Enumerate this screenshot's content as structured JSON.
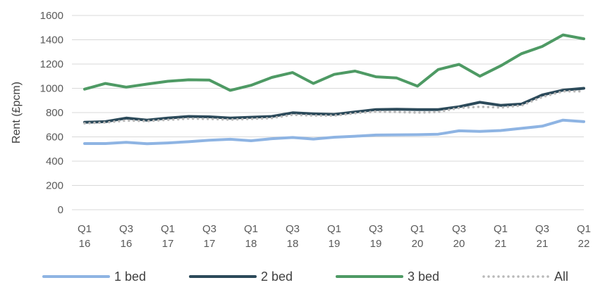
{
  "chart_data": {
    "type": "line",
    "title": "",
    "xlabel": "",
    "ylabel": "Rent (£pcm)",
    "ylim": [
      0,
      1600
    ],
    "yticks": [
      0,
      200,
      400,
      600,
      800,
      1000,
      1200,
      1400,
      1600
    ],
    "x_quarters": [
      "Q1 16",
      "Q2 16",
      "Q3 16",
      "Q4 16",
      "Q1 17",
      "Q2 17",
      "Q3 17",
      "Q4 17",
      "Q1 18",
      "Q2 18",
      "Q3 18",
      "Q4 18",
      "Q1 19",
      "Q2 19",
      "Q3 19",
      "Q4 19",
      "Q1 20",
      "Q2 20",
      "Q3 20",
      "Q4 20",
      "Q1 21",
      "Q2 21",
      "Q3 21",
      "Q4 21",
      "Q1 22"
    ],
    "x_tick_labels": [
      {
        "index": 0,
        "top": "Q1",
        "bottom": "16"
      },
      {
        "index": 2,
        "top": "Q3",
        "bottom": "16"
      },
      {
        "index": 4,
        "top": "Q1",
        "bottom": "17"
      },
      {
        "index": 6,
        "top": "Q3",
        "bottom": "17"
      },
      {
        "index": 8,
        "top": "Q1",
        "bottom": "18"
      },
      {
        "index": 10,
        "top": "Q3",
        "bottom": "18"
      },
      {
        "index": 12,
        "top": "Q1",
        "bottom": "19"
      },
      {
        "index": 14,
        "top": "Q3",
        "bottom": "19"
      },
      {
        "index": 16,
        "top": "Q1",
        "bottom": "20"
      },
      {
        "index": 18,
        "top": "Q3",
        "bottom": "20"
      },
      {
        "index": 20,
        "top": "Q1",
        "bottom": "21"
      },
      {
        "index": 22,
        "top": "Q3",
        "bottom": "21"
      },
      {
        "index": 24,
        "top": "Q1",
        "bottom": "22"
      }
    ],
    "grid": true,
    "legend_position": "bottom",
    "series": [
      {
        "name": "1 bed",
        "color": "#8eb4e3",
        "style": "solid",
        "values": [
          545,
          545,
          555,
          543,
          550,
          560,
          572,
          580,
          568,
          585,
          595,
          582,
          597,
          605,
          615,
          617,
          618,
          622,
          650,
          645,
          652,
          670,
          688,
          738,
          725
        ]
      },
      {
        "name": "2 bed",
        "color": "#2c4a5a",
        "style": "solid",
        "values": [
          720,
          725,
          755,
          738,
          755,
          768,
          765,
          755,
          762,
          768,
          798,
          790,
          785,
          805,
          825,
          828,
          825,
          825,
          848,
          885,
          860,
          870,
          945,
          985,
          1000
        ]
      },
      {
        "name": "3 bed",
        "color": "#4e9a64",
        "style": "solid",
        "values": [
          993,
          1040,
          1010,
          1035,
          1058,
          1070,
          1068,
          983,
          1025,
          1090,
          1130,
          1040,
          1115,
          1142,
          1095,
          1085,
          1018,
          1155,
          1197,
          1100,
          1185,
          1285,
          1345,
          1440,
          1408
        ]
      },
      {
        "name": "All",
        "color": "#b8b8b8",
        "style": "dotted",
        "values": [
          712,
          718,
          735,
          730,
          740,
          750,
          748,
          742,
          748,
          755,
          782,
          775,
          775,
          795,
          808,
          805,
          800,
          805,
          838,
          848,
          842,
          858,
          928,
          975,
          975
        ]
      }
    ]
  }
}
